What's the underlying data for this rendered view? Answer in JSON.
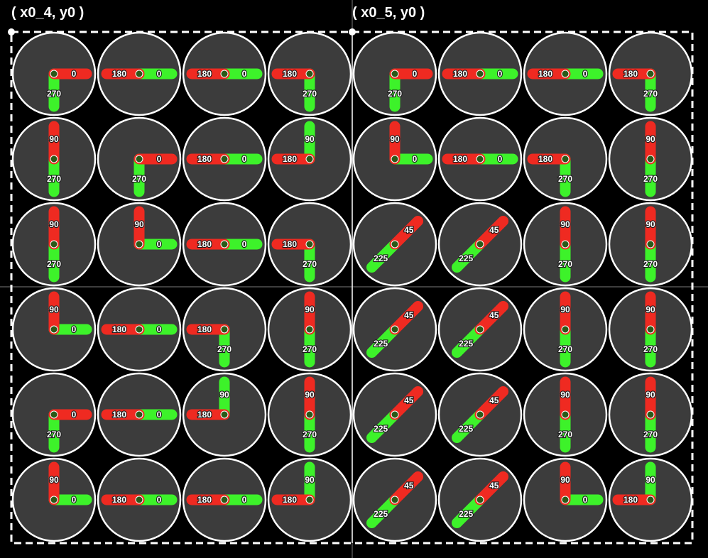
{
  "titles": [
    "( x0_4, y0 )",
    "( x0_5, y0 )"
  ],
  "colors": {
    "background": "#000000",
    "cell_fill": "#3c3c3c",
    "cell_stroke": "#ffffff",
    "hand_green": "#3df22a",
    "hand_red": "#ef2a21",
    "dot": "#2a5a18",
    "text": "#ffffff"
  },
  "grid": {
    "cols": 8,
    "rows": 6,
    "cells": [
      [
        [
          0,
          270
        ],
        [
          180,
          0
        ],
        [
          180,
          0
        ],
        [
          180,
          270
        ],
        [
          0,
          270
        ],
        [
          180,
          0
        ],
        [
          180,
          0
        ],
        [
          180,
          270
        ]
      ],
      [
        [
          90,
          270
        ],
        [
          0,
          270
        ],
        [
          180,
          0
        ],
        [
          180,
          90
        ],
        [
          90,
          0
        ],
        [
          180,
          0
        ],
        [
          180,
          270
        ],
        [
          90,
          270
        ]
      ],
      [
        [
          90,
          270
        ],
        [
          90,
          0
        ],
        [
          180,
          0
        ],
        [
          180,
          270
        ],
        [
          45,
          225
        ],
        [
          45,
          225
        ],
        [
          90,
          270
        ],
        [
          90,
          270
        ]
      ],
      [
        [
          90,
          0
        ],
        [
          180,
          0
        ],
        [
          180,
          270
        ],
        [
          90,
          270
        ],
        [
          45,
          225
        ],
        [
          45,
          225
        ],
        [
          90,
          270
        ],
        [
          90,
          270
        ]
      ],
      [
        [
          0,
          270
        ],
        [
          180,
          0
        ],
        [
          180,
          90
        ],
        [
          90,
          270
        ],
        [
          45,
          225
        ],
        [
          45,
          225
        ],
        [
          90,
          270
        ],
        [
          90,
          270
        ]
      ],
      [
        [
          90,
          0
        ],
        [
          180,
          0
        ],
        [
          180,
          0
        ],
        [
          180,
          90
        ],
        [
          45,
          225
        ],
        [
          45,
          225
        ],
        [
          90,
          0
        ],
        [
          180,
          90
        ]
      ]
    ]
  }
}
